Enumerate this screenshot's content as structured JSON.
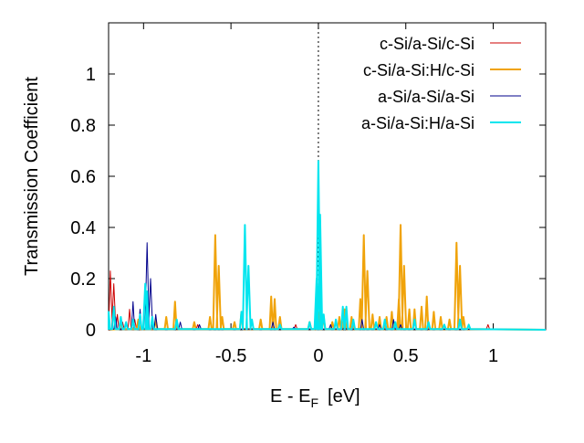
{
  "chart_data": {
    "type": "line",
    "xlabel": "E - E",
    "xlabel_sub": "F",
    "xlabel_unit": "[eV]",
    "ylabel": "Transmission Coefficient",
    "xlim": [
      -1.2,
      1.3
    ],
    "ylim": [
      0,
      1.2
    ],
    "xticks": [
      -1,
      -0.5,
      0,
      0.5,
      1
    ],
    "xtick_labels": [
      "-1",
      "-0.5",
      "0",
      "0.5",
      "1"
    ],
    "yticks": [
      0,
      0.2,
      0.4,
      0.6,
      0.8,
      1
    ],
    "ytick_labels": [
      "0",
      "0.2",
      "0.4",
      "0.6",
      "0.8",
      "1"
    ],
    "grid": false,
    "legend_position": "top-right",
    "fermi_line_x": 0,
    "series": [
      {
        "name": "c-Si/a-Si/c-Si",
        "color": "#cc0000",
        "peaks": [
          [
            -1.19,
            0.23
          ],
          [
            -1.17,
            0.18
          ],
          [
            -1.15,
            0.06
          ],
          [
            -1.12,
            0.03
          ],
          [
            -1.08,
            0.08
          ],
          [
            -1.05,
            0.04
          ],
          [
            -0.69,
            0.02
          ],
          [
            -0.13,
            0.02
          ],
          [
            0.97,
            0.02
          ]
        ]
      },
      {
        "name": "c-Si/a-Si:H/c-Si",
        "color": "#f0a30a",
        "peaks": [
          [
            -1.13,
            0.03
          ],
          [
            -1.03,
            0.04
          ],
          [
            -0.93,
            0.04
          ],
          [
            -0.87,
            0.05
          ],
          [
            -0.82,
            0.11
          ],
          [
            -0.71,
            0.03
          ],
          [
            -0.62,
            0.05
          ],
          [
            -0.59,
            0.37
          ],
          [
            -0.57,
            0.25
          ],
          [
            -0.55,
            0.05
          ],
          [
            -0.48,
            0.03
          ],
          [
            -0.44,
            0.07
          ],
          [
            -0.33,
            0.04
          ],
          [
            -0.27,
            0.13
          ],
          [
            -0.25,
            0.12
          ],
          [
            -0.22,
            0.05
          ],
          [
            -0.05,
            0.03
          ],
          [
            0.0,
            0.07
          ],
          [
            0.03,
            0.05
          ],
          [
            0.08,
            0.03
          ],
          [
            0.12,
            0.05
          ],
          [
            0.15,
            0.08
          ],
          [
            0.19,
            0.05
          ],
          [
            0.24,
            0.12
          ],
          [
            0.26,
            0.37
          ],
          [
            0.28,
            0.23
          ],
          [
            0.31,
            0.06
          ],
          [
            0.35,
            0.05
          ],
          [
            0.39,
            0.05
          ],
          [
            0.42,
            0.07
          ],
          [
            0.46,
            0.12
          ],
          [
            0.47,
            0.41
          ],
          [
            0.49,
            0.25
          ],
          [
            0.52,
            0.08
          ],
          [
            0.55,
            0.08
          ],
          [
            0.59,
            0.09
          ],
          [
            0.62,
            0.13
          ],
          [
            0.66,
            0.07
          ],
          [
            0.7,
            0.05
          ],
          [
            0.75,
            0.04
          ],
          [
            0.79,
            0.34
          ],
          [
            0.81,
            0.25
          ],
          [
            0.83,
            0.05
          ]
        ]
      },
      {
        "name": "a-Si/a-Si/a-Si",
        "color": "#00008b",
        "peaks": [
          [
            -1.16,
            0.05
          ],
          [
            -1.1,
            0.02
          ],
          [
            -1.06,
            0.11
          ],
          [
            -1.02,
            0.08
          ],
          [
            -0.98,
            0.34
          ],
          [
            -0.96,
            0.2
          ],
          [
            -0.93,
            0.06
          ],
          [
            -0.79,
            0.03
          ],
          [
            -0.68,
            0.02
          ],
          [
            -0.26,
            0.03
          ],
          [
            -0.14,
            0.01
          ],
          [
            0.0,
            0.02
          ],
          [
            0.07,
            0.02
          ],
          [
            0.15,
            0.01
          ],
          [
            0.25,
            0.04
          ],
          [
            0.35,
            0.02
          ],
          [
            0.43,
            0.04
          ],
          [
            0.47,
            0.02
          ]
        ]
      },
      {
        "name": "a-Si/a-Si:H/a-Si",
        "color": "#00e5ee",
        "peaks": [
          [
            -1.2,
            0.07
          ],
          [
            -1.17,
            0.09
          ],
          [
            -1.13,
            0.05
          ],
          [
            -1.1,
            0.03
          ],
          [
            -1.06,
            0.04
          ],
          [
            -1.02,
            0.06
          ],
          [
            -0.99,
            0.18
          ],
          [
            -0.98,
            0.15
          ],
          [
            -0.95,
            0.05
          ],
          [
            -0.81,
            0.04
          ],
          [
            -0.44,
            0.07
          ],
          [
            -0.42,
            0.41
          ],
          [
            -0.4,
            0.25
          ],
          [
            -0.38,
            0.04
          ],
          [
            -0.22,
            0.02
          ],
          [
            -0.05,
            0.03
          ],
          [
            -0.01,
            0.2
          ],
          [
            0.0,
            0.66
          ],
          [
            0.01,
            0.45
          ],
          [
            0.03,
            0.06
          ],
          [
            0.1,
            0.04
          ],
          [
            0.14,
            0.09
          ],
          [
            0.16,
            0.09
          ],
          [
            0.2,
            0.04
          ],
          [
            0.33,
            0.03
          ],
          [
            0.38,
            0.04
          ],
          [
            0.44,
            0.03
          ],
          [
            0.55,
            0.04
          ],
          [
            0.63,
            0.03
          ],
          [
            0.72,
            0.02
          ],
          [
            0.81,
            0.04
          ],
          [
            0.86,
            0.02
          ]
        ]
      }
    ]
  }
}
